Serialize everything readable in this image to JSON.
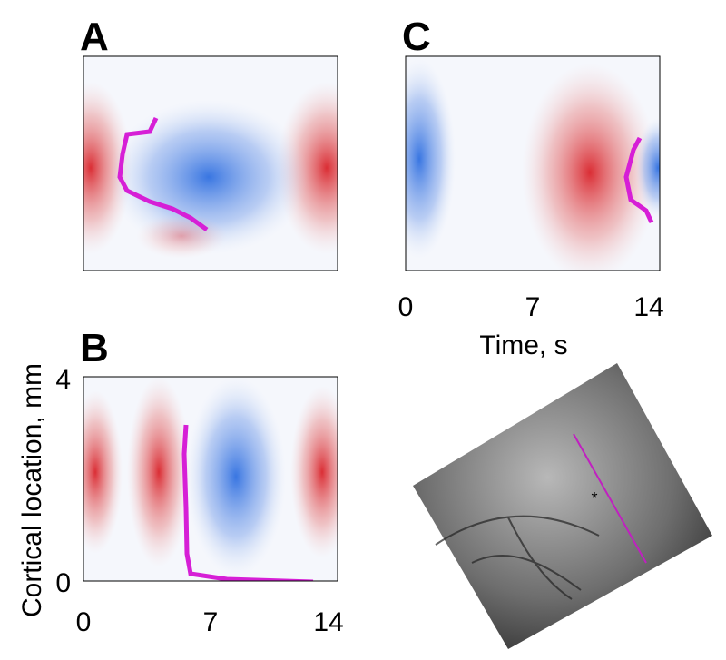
{
  "panels": [
    {
      "label": "A"
    },
    {
      "label": "B",
      "y_ticks": [
        "4",
        "0"
      ],
      "x_ticks": [
        "0",
        "7",
        "14"
      ],
      "y_label": "Cortical location, mm"
    },
    {
      "label": "C",
      "x_ticks": [
        "0",
        "7",
        "14"
      ],
      "x_label": "Time, s"
    }
  ]
}
